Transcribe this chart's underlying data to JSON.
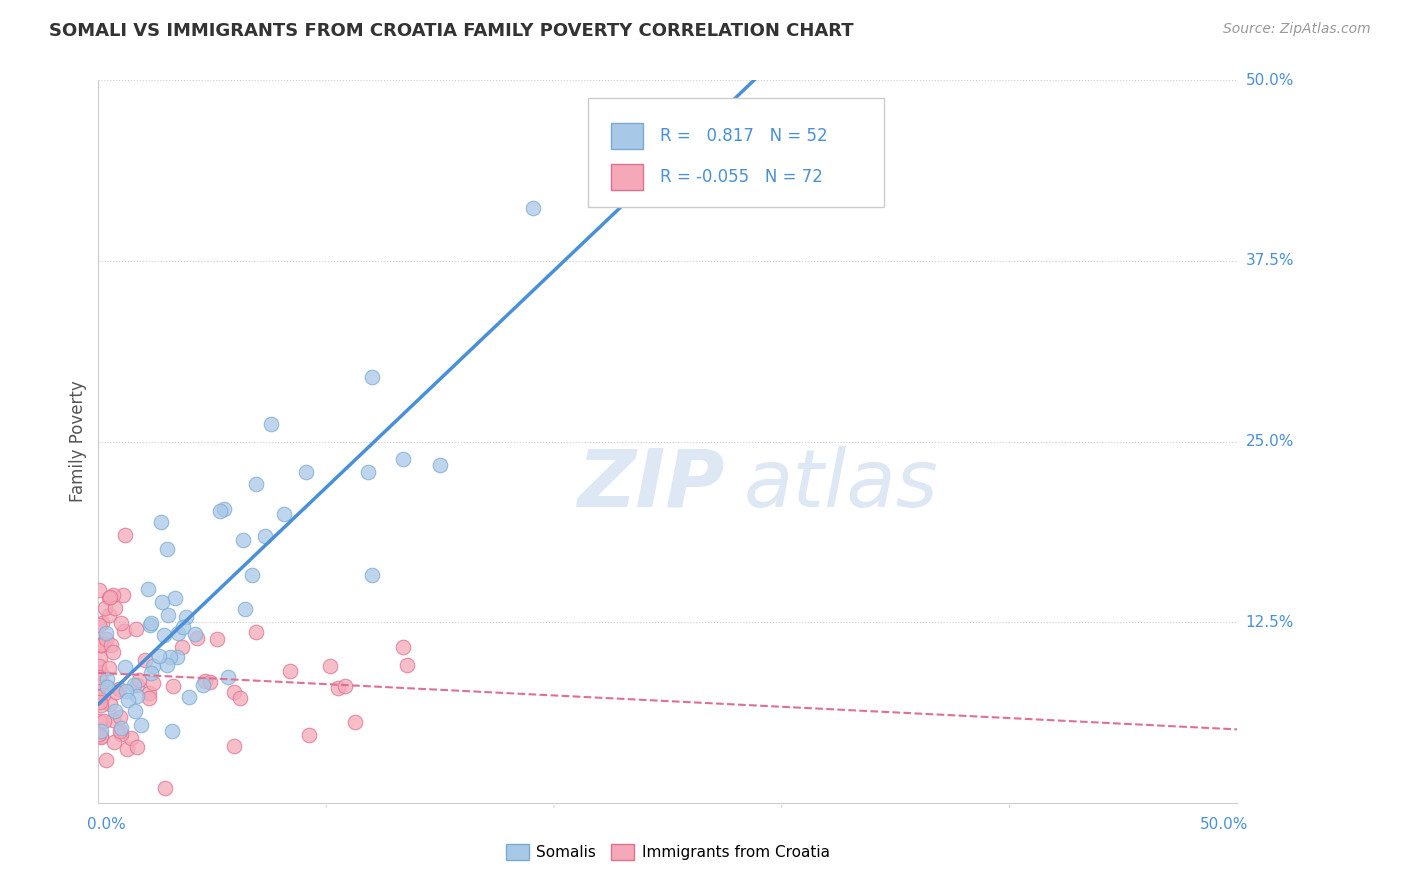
{
  "title": "SOMALI VS IMMIGRANTS FROM CROATIA FAMILY POVERTY CORRELATION CHART",
  "source": "Source: ZipAtlas.com",
  "ylabel": "Family Poverty",
  "legend1_R": "0.817",
  "legend1_N": "52",
  "legend2_R": "-0.055",
  "legend2_N": "72",
  "somali_color": "#a8c8e8",
  "somali_edge": "#7aaad0",
  "somali_line_color": "#4a90d9",
  "croatia_color": "#f4a8b8",
  "croatia_edge": "#e07090",
  "croatia_line_color": "#e07090",
  "watermark_color": "#dde8f4",
  "background_color": "#ffffff",
  "grid_color": "#cccccc",
  "tick_color": "#4a90d9",
  "label_color": "#555555"
}
